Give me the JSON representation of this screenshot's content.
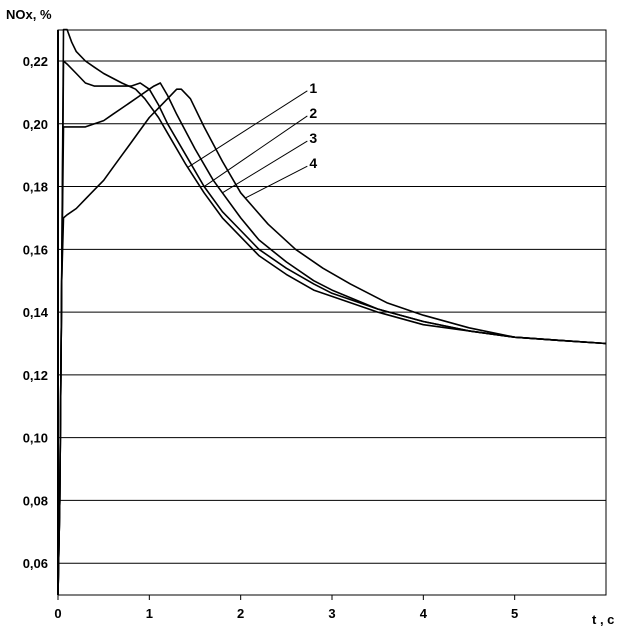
{
  "chart_data": {
    "type": "line",
    "ylabel": "NOx, %",
    "xlabel": "t , c",
    "xlim": [
      0,
      6
    ],
    "ylim": [
      0.05,
      0.23
    ],
    "x_ticks": [
      0,
      1,
      2,
      3,
      4,
      5
    ],
    "x_tick_labels": [
      "0",
      "1",
      "2",
      "3",
      "4",
      "5"
    ],
    "y_ticks": [
      0.06,
      0.08,
      0.1,
      0.12,
      0.14,
      0.16,
      0.18,
      0.2,
      0.22
    ],
    "y_tick_labels": [
      "0,06",
      "0,08",
      "0,10",
      "0,12",
      "0,14",
      "0,16",
      "0,18",
      "0,20",
      "0,22"
    ],
    "horizontal_grid": true,
    "vertical_grid": false,
    "line_color": "#000000",
    "series": [
      {
        "name": "1",
        "points": [
          [
            0.0,
            0.05
          ],
          [
            0.02,
            0.08
          ],
          [
            0.04,
            0.15
          ],
          [
            0.06,
            0.23
          ],
          [
            0.1,
            0.23
          ],
          [
            0.15,
            0.226
          ],
          [
            0.2,
            0.223
          ],
          [
            0.3,
            0.22
          ],
          [
            0.4,
            0.218
          ],
          [
            0.5,
            0.216
          ],
          [
            0.7,
            0.213
          ],
          [
            0.85,
            0.211
          ],
          [
            0.95,
            0.208
          ],
          [
            1.1,
            0.202
          ],
          [
            1.2,
            0.197
          ],
          [
            1.4,
            0.187
          ],
          [
            1.6,
            0.178
          ],
          [
            1.8,
            0.17
          ],
          [
            2.0,
            0.164
          ],
          [
            2.2,
            0.158
          ],
          [
            2.5,
            0.152
          ],
          [
            2.8,
            0.147
          ],
          [
            3.0,
            0.145
          ],
          [
            3.5,
            0.14
          ],
          [
            4.0,
            0.136
          ],
          [
            4.5,
            0.134
          ],
          [
            5.0,
            0.132
          ],
          [
            5.5,
            0.131
          ],
          [
            6.0,
            0.13
          ]
        ]
      },
      {
        "name": "2",
        "points": [
          [
            0.0,
            0.05
          ],
          [
            0.02,
            0.08
          ],
          [
            0.04,
            0.15
          ],
          [
            0.06,
            0.22
          ],
          [
            0.1,
            0.219
          ],
          [
            0.2,
            0.216
          ],
          [
            0.3,
            0.213
          ],
          [
            0.4,
            0.212
          ],
          [
            0.6,
            0.212
          ],
          [
            0.8,
            0.212
          ],
          [
            0.9,
            0.213
          ],
          [
            1.0,
            0.211
          ],
          [
            1.1,
            0.206
          ],
          [
            1.2,
            0.2
          ],
          [
            1.4,
            0.19
          ],
          [
            1.6,
            0.18
          ],
          [
            1.8,
            0.172
          ],
          [
            2.0,
            0.166
          ],
          [
            2.2,
            0.16
          ],
          [
            2.5,
            0.154
          ],
          [
            2.8,
            0.149
          ],
          [
            3.0,
            0.146
          ],
          [
            3.5,
            0.141
          ],
          [
            4.0,
            0.137
          ],
          [
            4.5,
            0.134
          ],
          [
            5.0,
            0.132
          ],
          [
            5.5,
            0.131
          ],
          [
            6.0,
            0.13
          ]
        ]
      },
      {
        "name": "3",
        "points": [
          [
            0.0,
            0.05
          ],
          [
            0.02,
            0.08
          ],
          [
            0.04,
            0.15
          ],
          [
            0.06,
            0.199
          ],
          [
            0.1,
            0.199
          ],
          [
            0.2,
            0.199
          ],
          [
            0.3,
            0.199
          ],
          [
            0.4,
            0.2
          ],
          [
            0.5,
            0.201
          ],
          [
            0.6,
            0.203
          ],
          [
            0.7,
            0.205
          ],
          [
            0.8,
            0.207
          ],
          [
            0.9,
            0.209
          ],
          [
            1.0,
            0.211
          ],
          [
            1.05,
            0.212
          ],
          [
            1.12,
            0.213
          ],
          [
            1.2,
            0.209
          ],
          [
            1.3,
            0.203
          ],
          [
            1.5,
            0.192
          ],
          [
            1.7,
            0.182
          ],
          [
            2.0,
            0.17
          ],
          [
            2.2,
            0.163
          ],
          [
            2.5,
            0.156
          ],
          [
            2.8,
            0.15
          ],
          [
            3.0,
            0.147
          ],
          [
            3.5,
            0.141
          ],
          [
            4.0,
            0.137
          ],
          [
            4.5,
            0.134
          ],
          [
            5.0,
            0.132
          ],
          [
            5.5,
            0.131
          ],
          [
            6.0,
            0.13
          ]
        ]
      },
      {
        "name": "4",
        "points": [
          [
            0.0,
            0.05
          ],
          [
            0.02,
            0.08
          ],
          [
            0.04,
            0.15
          ],
          [
            0.06,
            0.17
          ],
          [
            0.1,
            0.171
          ],
          [
            0.2,
            0.173
          ],
          [
            0.3,
            0.176
          ],
          [
            0.4,
            0.179
          ],
          [
            0.5,
            0.182
          ],
          [
            0.6,
            0.186
          ],
          [
            0.7,
            0.19
          ],
          [
            0.8,
            0.194
          ],
          [
            0.9,
            0.198
          ],
          [
            1.0,
            0.202
          ],
          [
            1.1,
            0.205
          ],
          [
            1.2,
            0.208
          ],
          [
            1.3,
            0.211
          ],
          [
            1.35,
            0.211
          ],
          [
            1.45,
            0.208
          ],
          [
            1.6,
            0.199
          ],
          [
            1.8,
            0.188
          ],
          [
            2.0,
            0.178
          ],
          [
            2.3,
            0.168
          ],
          [
            2.6,
            0.16
          ],
          [
            2.9,
            0.154
          ],
          [
            3.2,
            0.149
          ],
          [
            3.6,
            0.143
          ],
          [
            4.0,
            0.139
          ],
          [
            4.5,
            0.135
          ],
          [
            5.0,
            0.132
          ],
          [
            5.5,
            0.131
          ],
          [
            6.0,
            0.13
          ]
        ]
      }
    ]
  }
}
